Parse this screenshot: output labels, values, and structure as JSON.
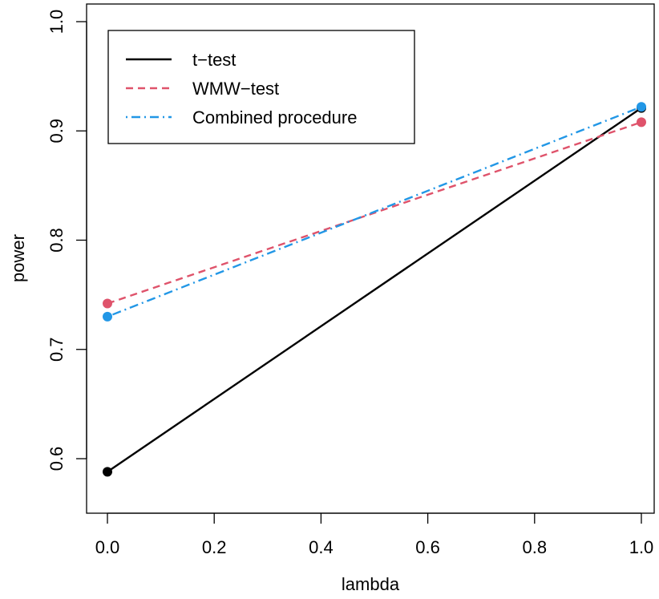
{
  "chart_data": {
    "type": "line",
    "title": "",
    "xlabel": "lambda",
    "ylabel": "power",
    "xlim": [
      0,
      1
    ],
    "ylim": [
      0.5,
      1.0
    ],
    "x_ticks": [
      "0.0",
      "0.2",
      "0.4",
      "0.6",
      "0.8",
      "1.0"
    ],
    "y_ticks": [
      "0.6",
      "0.7",
      "0.8",
      "0.9",
      "1.0"
    ],
    "x": [
      0,
      1
    ],
    "series": [
      {
        "name": "t−test",
        "values": [
          0.588,
          0.921
        ],
        "color": "#000000",
        "dash": "solid"
      },
      {
        "name": "WMW−test",
        "values": [
          0.742,
          0.908
        ],
        "color": "#DF536B",
        "dash": "dashed"
      },
      {
        "name": "Combined procedure",
        "values": [
          0.73,
          0.922
        ],
        "color": "#2297E6",
        "dash": "dotdash"
      }
    ],
    "legend_position": "top-left",
    "grid": false
  }
}
